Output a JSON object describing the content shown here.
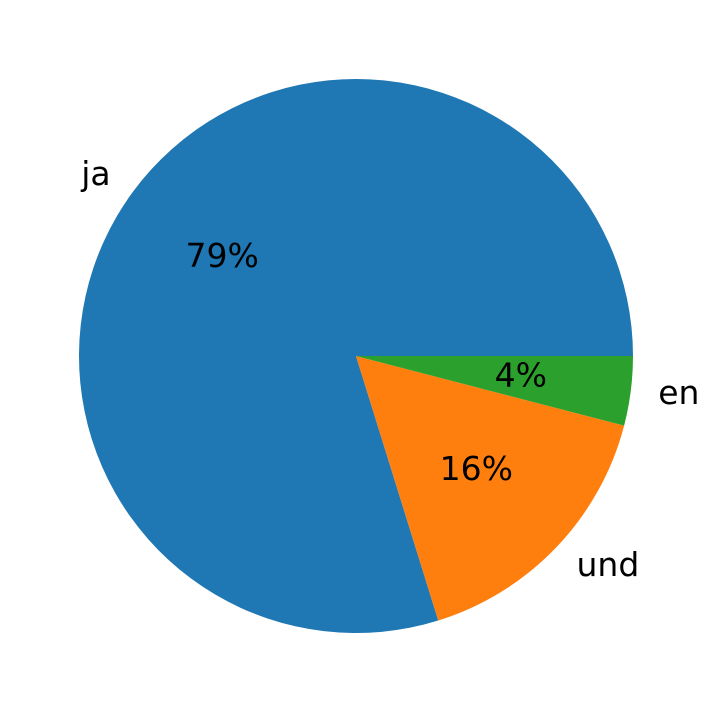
{
  "chart_data": {
    "type": "pie",
    "categories": [
      "ja",
      "und",
      "en"
    ],
    "values": [
      79,
      16,
      4
    ],
    "value_labels": [
      "79%",
      "16%",
      "4%"
    ],
    "colors": [
      "#1f77b4",
      "#ff7f0e",
      "#2ca02c"
    ]
  }
}
